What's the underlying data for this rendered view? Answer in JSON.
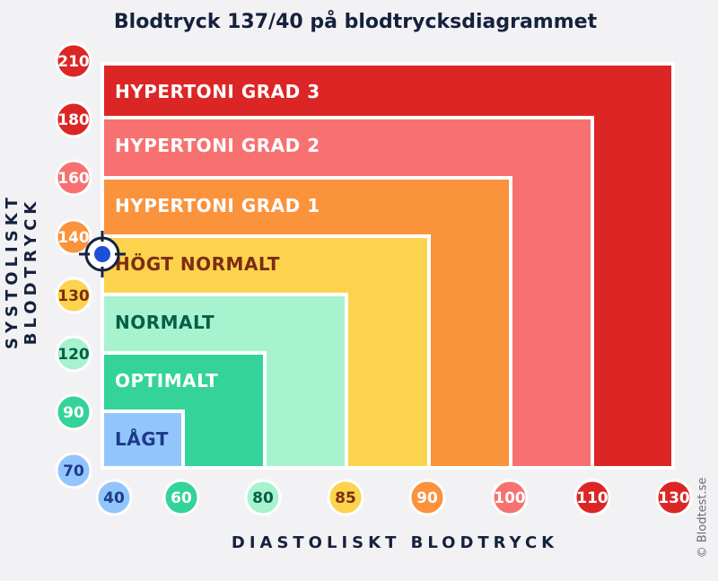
{
  "title": "Blodtryck 137/40 på blodtrycksdiagrammet",
  "y_axis_title": "SYSTOLISKT BLODTRYCK",
  "x_axis_title": "DIASTOLISKT BLODTRYCK",
  "credit": "© Blodtest.se",
  "marker": {
    "systolic": 137,
    "diastolic": 40
  },
  "zones": [
    {
      "label": "HYPERTONI GRAD 3",
      "color": "#dc2626",
      "text_color": "#ffffff",
      "systolic_upper": 210,
      "diastolic_upper": 130
    },
    {
      "label": "HYPERTONI GRAD 2",
      "color": "#f87171",
      "text_color": "#ffffff",
      "systolic_upper": 180,
      "diastolic_upper": 110
    },
    {
      "label": "HYPERTONI GRAD 1",
      "color": "#fb923c",
      "text_color": "#ffffff",
      "systolic_upper": 160,
      "diastolic_upper": 100
    },
    {
      "label": "HÖGT NORMALT",
      "color": "#fcd34d",
      "text_color": "#7c2d12",
      "systolic_upper": 140,
      "diastolic_upper": 90
    },
    {
      "label": "NORMALT",
      "color": "#a7f3d0",
      "text_color": "#065f46",
      "systolic_upper": 130,
      "diastolic_upper": 85
    },
    {
      "label": "OPTIMALT",
      "color": "#34d399",
      "text_color": "#ffffff",
      "systolic_upper": 120,
      "diastolic_upper": 80
    },
    {
      "label": "LÅGT",
      "color": "#93c5fd",
      "text_color": "#1e3a8a",
      "systolic_upper": 90,
      "diastolic_upper": 60
    }
  ],
  "y_ticks": [
    {
      "label": "210",
      "color": "#dc2626",
      "text_color": "#ffffff"
    },
    {
      "label": "180",
      "color": "#dc2626",
      "text_color": "#ffffff"
    },
    {
      "label": "160",
      "color": "#f87171",
      "text_color": "#ffffff"
    },
    {
      "label": "140",
      "color": "#fb923c",
      "text_color": "#ffffff"
    },
    {
      "label": "130",
      "color": "#fcd34d",
      "text_color": "#7c2d12"
    },
    {
      "label": "120",
      "color": "#a7f3d0",
      "text_color": "#065f46"
    },
    {
      "label": "90",
      "color": "#34d399",
      "text_color": "#ffffff"
    },
    {
      "label": "70",
      "color": "#93c5fd",
      "text_color": "#1e3a8a"
    }
  ],
  "x_ticks": [
    {
      "label": "40",
      "color": "#93c5fd",
      "text_color": "#1e3a8a"
    },
    {
      "label": "60",
      "color": "#34d399",
      "text_color": "#ffffff"
    },
    {
      "label": "80",
      "color": "#a7f3d0",
      "text_color": "#065f46"
    },
    {
      "label": "85",
      "color": "#fcd34d",
      "text_color": "#7c2d12"
    },
    {
      "label": "90",
      "color": "#fb923c",
      "text_color": "#ffffff"
    },
    {
      "label": "100",
      "color": "#f87171",
      "text_color": "#ffffff"
    },
    {
      "label": "110",
      "color": "#dc2626",
      "text_color": "#ffffff"
    },
    {
      "label": "130",
      "color": "#dc2626",
      "text_color": "#ffffff"
    }
  ],
  "marker_color": "#1d4ed8",
  "crosshair_color": "#16213e"
}
